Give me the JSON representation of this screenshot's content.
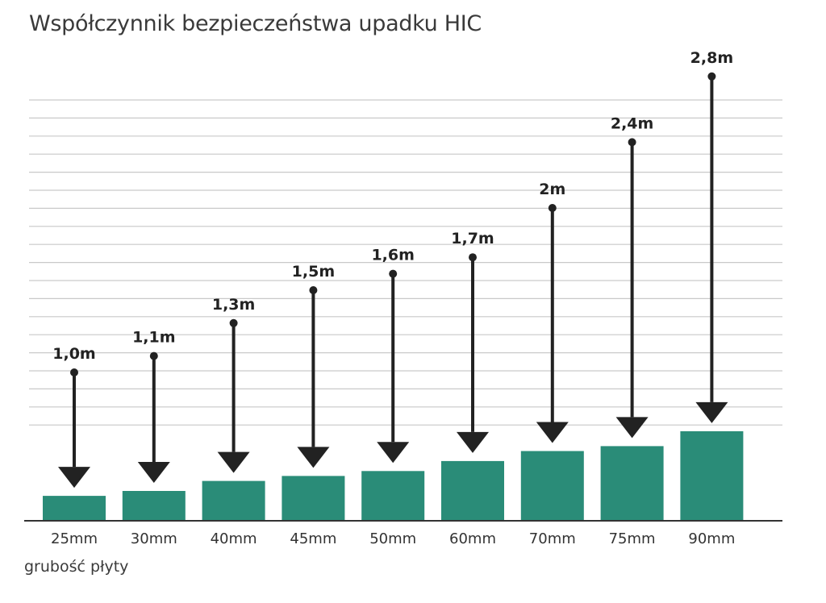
{
  "chart_data": {
    "type": "bar",
    "title": "Współczynnik bezpieczeństwa upadku HIC",
    "xlabel": "grubość płyty",
    "ylabel": "",
    "categories": [
      "25mm",
      "30mm",
      "40mm",
      "45mm",
      "50mm",
      "60mm",
      "70mm",
      "75mm",
      "90mm"
    ],
    "values": [
      25,
      30,
      40,
      45,
      50,
      60,
      70,
      75,
      90
    ],
    "drop_heights": [
      1.0,
      1.1,
      1.3,
      1.5,
      1.6,
      1.7,
      2.0,
      2.4,
      2.8
    ],
    "drop_labels": [
      "1,0m",
      "1,1m",
      "1,3m",
      "1,5m",
      "1,6m",
      "1,7m",
      "2m",
      "2,4m",
      "2,8m"
    ],
    "grid": true,
    "colors": {
      "bar": "#2a8c78",
      "arrow": "#222222",
      "grid": "#c9c9c9"
    }
  }
}
